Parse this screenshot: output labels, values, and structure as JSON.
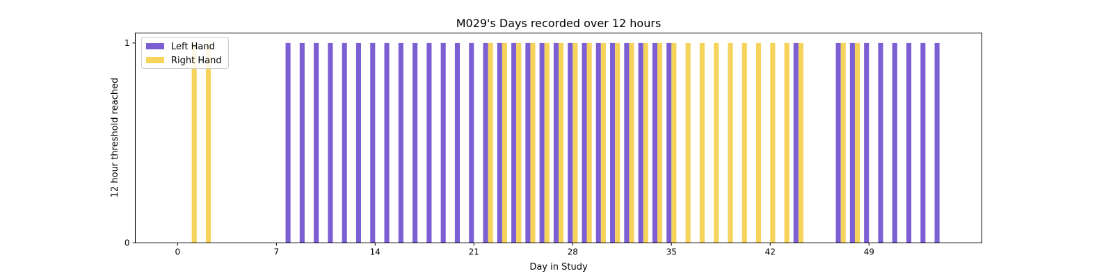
{
  "chart_data": {
    "type": "bar",
    "title": "M029's Days recorded over 12 hours",
    "xlabel": "Day in Study",
    "ylabel": "12 hour threshold reached",
    "xlim": [
      -3,
      57
    ],
    "ylim": [
      0,
      1.05
    ],
    "xticks": [
      0,
      7,
      14,
      21,
      28,
      35,
      42,
      49
    ],
    "yticks": [
      0,
      1
    ],
    "legend_position": "top-left",
    "series": [
      {
        "name": "Left Hand",
        "color": "#7b5fd3",
        "x": [
          8,
          9,
          10,
          11,
          12,
          13,
          14,
          15,
          16,
          17,
          18,
          19,
          20,
          21,
          22,
          23,
          24,
          25,
          26,
          27,
          28,
          29,
          30,
          31,
          32,
          33,
          34,
          35,
          44,
          47,
          48,
          49,
          50,
          51,
          52,
          53,
          54
        ],
        "values": [
          1,
          1,
          1,
          1,
          1,
          1,
          1,
          1,
          1,
          1,
          1,
          1,
          1,
          1,
          1,
          1,
          1,
          1,
          1,
          1,
          1,
          1,
          1,
          1,
          1,
          1,
          1,
          1,
          1,
          1,
          1,
          1,
          1,
          1,
          1,
          1,
          1
        ]
      },
      {
        "name": "Right Hand",
        "color": "#f6d35b",
        "x": [
          1,
          2,
          22,
          23,
          24,
          25,
          26,
          27,
          28,
          29,
          30,
          31,
          32,
          33,
          34,
          35,
          36,
          37,
          38,
          39,
          40,
          41,
          42,
          43,
          44,
          47,
          48
        ],
        "values": [
          1,
          1,
          1,
          1,
          1,
          1,
          1,
          1,
          1,
          1,
          1,
          1,
          1,
          1,
          1,
          1,
          1,
          1,
          1,
          1,
          1,
          1,
          1,
          1,
          1,
          1,
          1
        ]
      }
    ]
  }
}
